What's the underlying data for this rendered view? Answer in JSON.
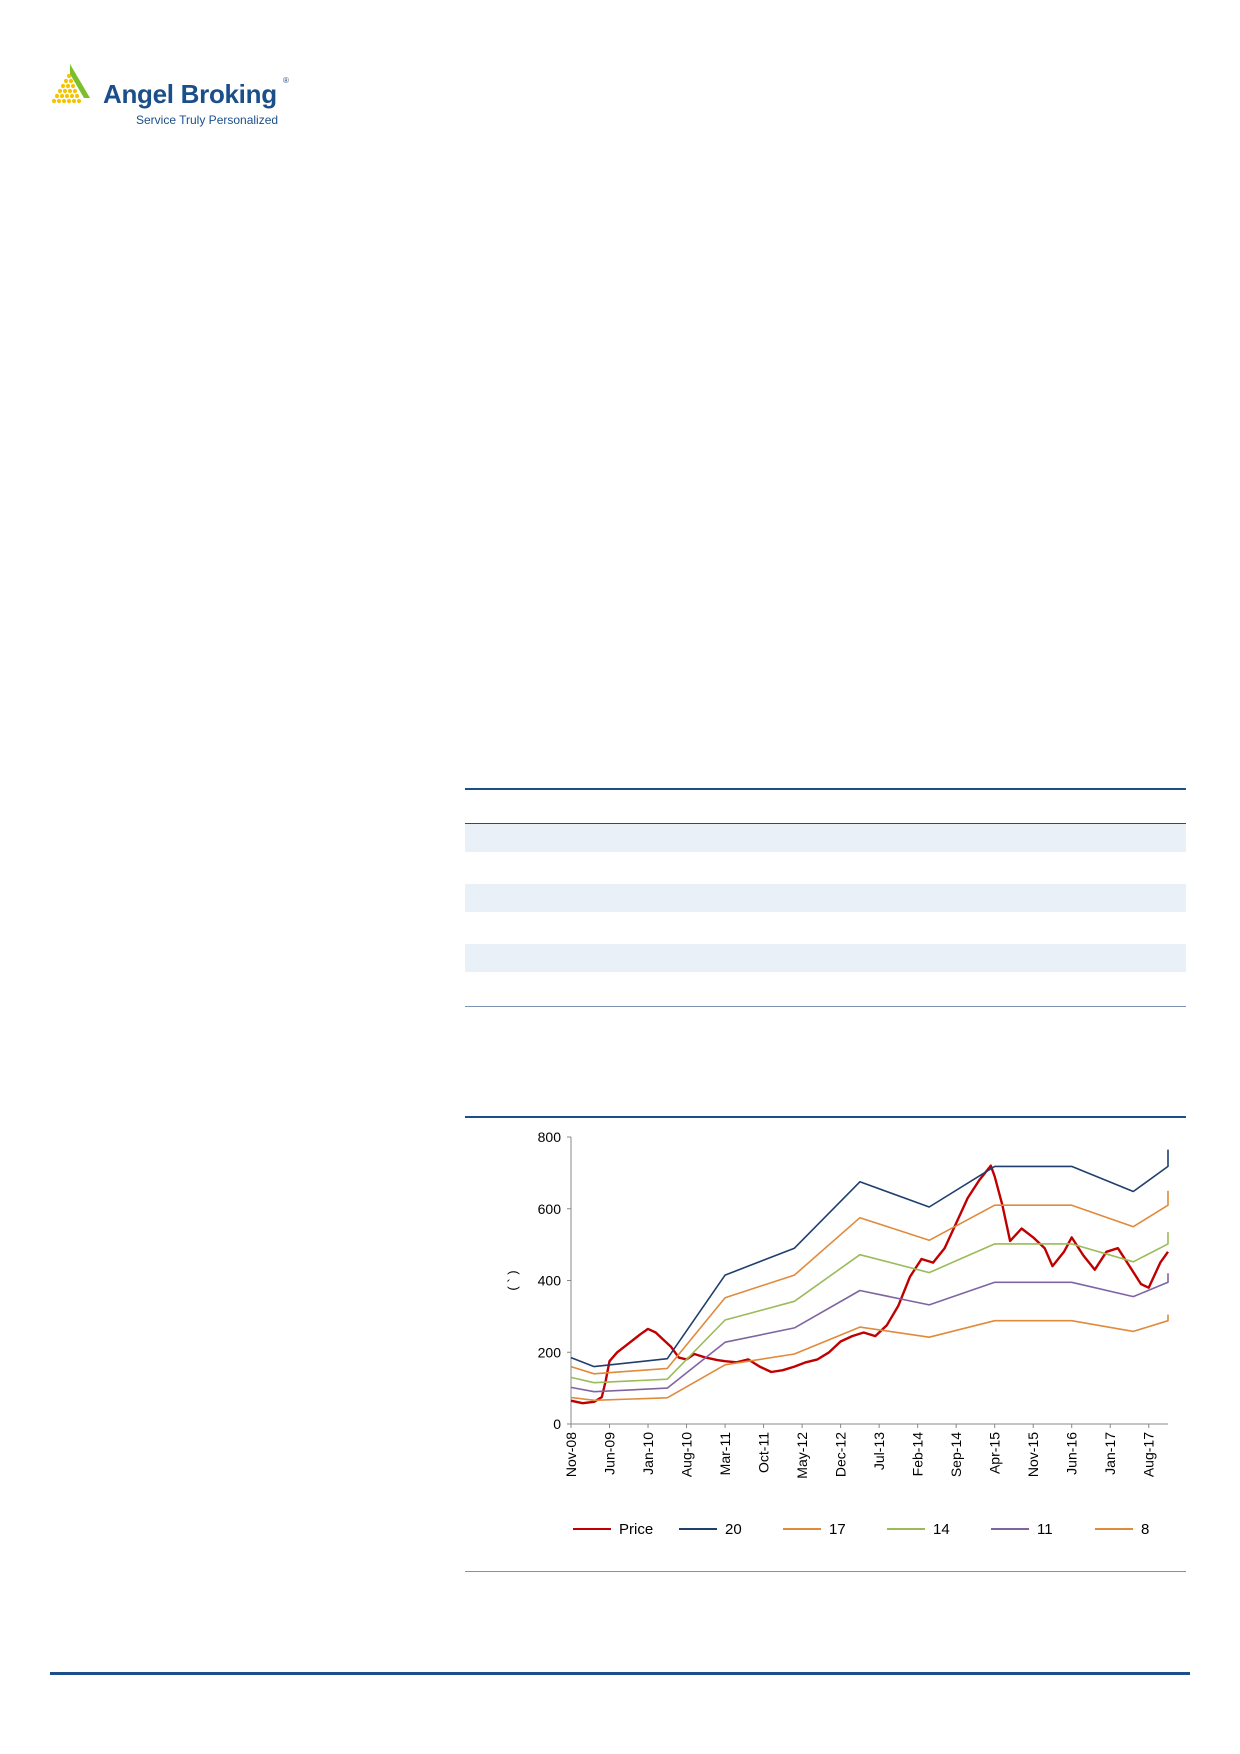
{
  "brand": {
    "name": "Angel Broking",
    "registered_mark": "®",
    "tagline": "Service Truly Personalized",
    "colors": {
      "navy": "#1b4f8a",
      "green": "#7bbf2a",
      "yellow": "#f5c400"
    }
  },
  "table": {
    "shaded_rows": 3,
    "colors": {
      "rule": "#1b4f8a",
      "shade": "#eaf0f8"
    }
  },
  "chart_data": {
    "type": "line",
    "title": "",
    "xlabel": "",
    "ylabel": "( ` )",
    "ylim": [
      0,
      800
    ],
    "yticks": [
      0,
      200,
      400,
      600,
      800
    ],
    "x_tick_labels": [
      "Nov-08",
      "Jun-09",
      "Jan-10",
      "Aug-10",
      "Mar-11",
      "Oct-11",
      "May-12",
      "Dec-12",
      "Jul-13",
      "Feb-14",
      "Sep-14",
      "Apr-15",
      "Nov-15",
      "Jun-16",
      "Jan-17",
      "Aug-17"
    ],
    "x_index_range": [
      0,
      15.5
    ],
    "grid": false,
    "legend_position": "bottom",
    "series": [
      {
        "name": "Price",
        "color": "#c00000",
        "points": [
          [
            0,
            65
          ],
          [
            0.3,
            58
          ],
          [
            0.6,
            62
          ],
          [
            0.8,
            75
          ],
          [
            0.9,
            120
          ],
          [
            1.0,
            175
          ],
          [
            1.2,
            200
          ],
          [
            1.5,
            225
          ],
          [
            1.8,
            250
          ],
          [
            2.0,
            265
          ],
          [
            2.2,
            255
          ],
          [
            2.4,
            235
          ],
          [
            2.6,
            215
          ],
          [
            2.8,
            185
          ],
          [
            3.0,
            180
          ],
          [
            3.2,
            195
          ],
          [
            3.5,
            185
          ],
          [
            3.8,
            178
          ],
          [
            4.0,
            175
          ],
          [
            4.3,
            172
          ],
          [
            4.6,
            180
          ],
          [
            4.9,
            160
          ],
          [
            5.2,
            145
          ],
          [
            5.5,
            150
          ],
          [
            5.8,
            160
          ],
          [
            6.1,
            172
          ],
          [
            6.4,
            180
          ],
          [
            6.7,
            200
          ],
          [
            7.0,
            230
          ],
          [
            7.3,
            245
          ],
          [
            7.6,
            255
          ],
          [
            7.9,
            245
          ],
          [
            8.2,
            275
          ],
          [
            8.5,
            330
          ],
          [
            8.8,
            410
          ],
          [
            9.1,
            460
          ],
          [
            9.4,
            450
          ],
          [
            9.7,
            490
          ],
          [
            10.0,
            560
          ],
          [
            10.3,
            630
          ],
          [
            10.6,
            680
          ],
          [
            10.9,
            720
          ],
          [
            11.0,
            690
          ],
          [
            11.2,
            610
          ],
          [
            11.4,
            510
          ],
          [
            11.7,
            545
          ],
          [
            12.0,
            520
          ],
          [
            12.3,
            490
          ],
          [
            12.5,
            440
          ],
          [
            12.8,
            480
          ],
          [
            13.0,
            520
          ],
          [
            13.3,
            470
          ],
          [
            13.6,
            430
          ],
          [
            13.9,
            480
          ],
          [
            14.2,
            490
          ],
          [
            14.5,
            440
          ],
          [
            14.8,
            390
          ],
          [
            15.0,
            380
          ],
          [
            15.3,
            450
          ],
          [
            15.5,
            480
          ]
        ]
      },
      {
        "name": "20",
        "color": "#1f3f6e",
        "points": [
          [
            0,
            185
          ],
          [
            0.6,
            160
          ],
          [
            2.5,
            182
          ],
          [
            4.0,
            415
          ],
          [
            5.8,
            490
          ],
          [
            7.5,
            675
          ],
          [
            9.3,
            605
          ],
          [
            11.0,
            718
          ],
          [
            13.0,
            718
          ],
          [
            14.6,
            648
          ],
          [
            15.5,
            718
          ],
          [
            15.5,
            765
          ]
        ]
      },
      {
        "name": "17",
        "color": "#e08a3c",
        "points": [
          [
            0,
            160
          ],
          [
            0.6,
            140
          ],
          [
            2.5,
            155
          ],
          [
            4.0,
            352
          ],
          [
            5.8,
            415
          ],
          [
            7.5,
            575
          ],
          [
            9.3,
            512
          ],
          [
            11.0,
            610
          ],
          [
            13.0,
            610
          ],
          [
            14.6,
            550
          ],
          [
            15.5,
            610
          ],
          [
            15.5,
            650
          ]
        ]
      },
      {
        "name": "14",
        "color": "#9bbb59",
        "points": [
          [
            0,
            130
          ],
          [
            0.6,
            115
          ],
          [
            2.5,
            125
          ],
          [
            4.0,
            290
          ],
          [
            5.8,
            342
          ],
          [
            7.5,
            472
          ],
          [
            9.3,
            422
          ],
          [
            11.0,
            502
          ],
          [
            13.0,
            502
          ],
          [
            14.6,
            452
          ],
          [
            15.5,
            502
          ],
          [
            15.5,
            535
          ]
        ]
      },
      {
        "name": "11",
        "color": "#8064a2",
        "points": [
          [
            0,
            102
          ],
          [
            0.6,
            90
          ],
          [
            2.5,
            100
          ],
          [
            4.0,
            228
          ],
          [
            5.8,
            268
          ],
          [
            7.5,
            372
          ],
          [
            9.3,
            332
          ],
          [
            11.0,
            395
          ],
          [
            13.0,
            395
          ],
          [
            14.6,
            355
          ],
          [
            15.5,
            395
          ],
          [
            15.5,
            420
          ]
        ]
      },
      {
        "name": "8",
        "color": "#e08a3c",
        "points": [
          [
            0,
            74
          ],
          [
            0.6,
            66
          ],
          [
            2.5,
            73
          ],
          [
            4.0,
            165
          ],
          [
            5.8,
            195
          ],
          [
            7.5,
            270
          ],
          [
            9.3,
            242
          ],
          [
            11.0,
            288
          ],
          [
            13.0,
            288
          ],
          [
            14.6,
            258
          ],
          [
            15.5,
            288
          ],
          [
            15.5,
            305
          ]
        ]
      }
    ]
  }
}
